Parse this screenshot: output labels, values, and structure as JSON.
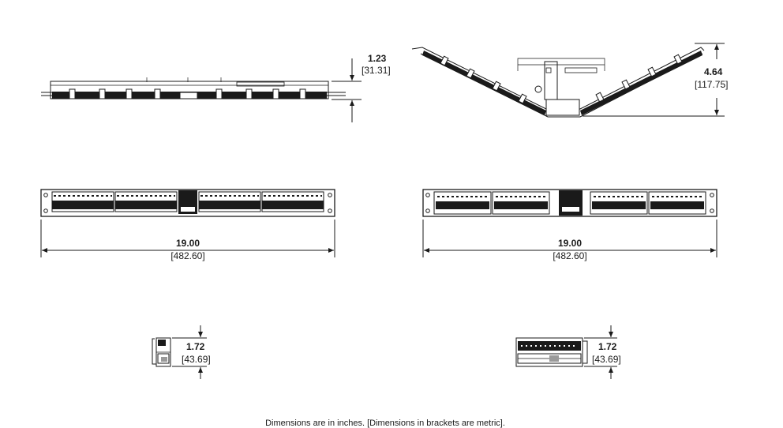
{
  "top_flat": {
    "in": "1.23",
    "mm": "[31.31]"
  },
  "top_angled": {
    "in": "4.64",
    "mm": "[117.75]"
  },
  "front_flat": {
    "in": "19.00",
    "mm": "[482.60]"
  },
  "front_angled": {
    "in": "19.00",
    "mm": "[482.60]"
  },
  "side_flat": {
    "in": "1.72",
    "mm": "[43.69]"
  },
  "side_angled": {
    "in": "1.72",
    "mm": "[43.69]"
  },
  "footnote": "Dimensions are in inches. [Dimensions in brackets are metric].",
  "colors": {
    "line": "#1a1a1a",
    "fill": "#1a1a1a",
    "shade": "#9a9a9a",
    "background": "#ffffff"
  }
}
